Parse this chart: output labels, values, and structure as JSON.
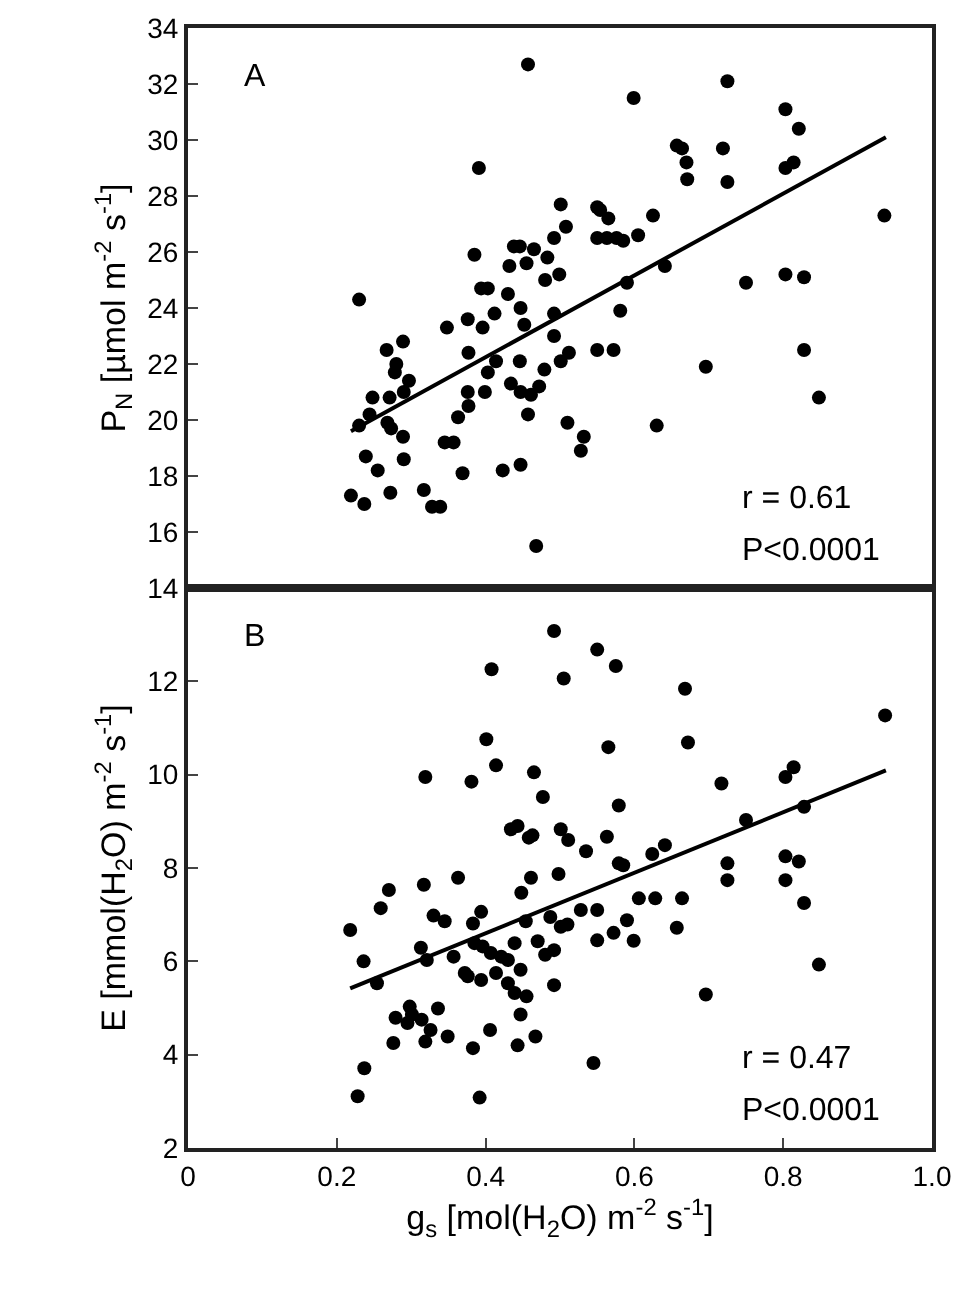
{
  "chart_data": [
    {
      "type": "scatter",
      "grid": false,
      "tick_labels": "y",
      "ylabel": "P$_{N}$ [µmol m$^{-2}$ s$^{-1}$]",
      "xlim": [
        0,
        1
      ],
      "ylim": [
        14,
        34
      ],
      "yticks": [
        14,
        16,
        18,
        20,
        22,
        24,
        26,
        28,
        30,
        32,
        34
      ],
      "annotations": [
        "A",
        "r = 0.61",
        "P<0.0001"
      ],
      "series": [
        {
          "color": "#000000",
          "marker": "circle",
          "x": [
            0.457,
            0.391,
            0.501,
            0.508,
            0.23,
            0.385,
            0.438,
            0.446,
            0.465,
            0.492,
            0.483,
            0.432,
            0.455,
            0.499,
            0.48,
            0.394,
            0.403,
            0.43,
            0.447,
            0.412,
            0.376,
            0.396,
            0.348,
            0.452,
            0.492,
            0.492,
            0.512,
            0.267,
            0.289,
            0.28,
            0.377,
            0.414,
            0.446,
            0.501,
            0.479,
            0.278,
            0.297,
            0.403,
            0.434,
            0.447,
            0.461,
            0.472,
            0.376,
            0.399,
            0.248,
            0.271,
            0.29,
            0.377,
            0.244,
            0.363,
            0.23,
            0.268,
            0.273,
            0.457,
            0.51,
            0.289,
            0.345,
            0.357,
            0.239,
            0.29,
            0.255,
            0.369,
            0.423,
            0.447,
            0.219,
            0.237,
            0.272,
            0.317,
            0.328,
            0.339,
            0.468,
            0.725,
            0.599,
            0.803,
            0.821,
            0.657,
            0.664,
            0.719,
            0.67,
            0.803,
            0.814,
            0.671,
            0.725,
            0.936,
            0.55,
            0.554,
            0.565,
            0.625,
            0.55,
            0.563,
            0.576,
            0.585,
            0.605,
            0.641,
            0.59,
            0.75,
            0.803,
            0.828,
            0.581,
            0.55,
            0.572,
            0.696,
            0.828,
            0.848,
            0.532,
            0.528,
            0.63
          ],
          "values": [
            32.7,
            29.0,
            27.7,
            26.9,
            24.3,
            25.9,
            26.2,
            26.2,
            26.1,
            26.5,
            25.8,
            25.5,
            25.6,
            25.2,
            25.0,
            24.7,
            24.7,
            24.5,
            24.0,
            23.8,
            23.6,
            23.3,
            23.3,
            23.4,
            23.8,
            23.0,
            22.4,
            22.5,
            22.8,
            22.0,
            22.4,
            22.1,
            22.1,
            22.1,
            21.8,
            21.7,
            21.4,
            21.7,
            21.3,
            21.0,
            20.9,
            21.2,
            21.0,
            21.0,
            20.8,
            20.8,
            21.0,
            20.5,
            20.2,
            20.1,
            19.8,
            19.9,
            19.7,
            20.2,
            19.9,
            19.4,
            19.2,
            19.2,
            18.7,
            18.6,
            18.2,
            18.1,
            18.2,
            18.4,
            17.3,
            17.0,
            17.4,
            17.5,
            16.9,
            16.9,
            15.5,
            32.1,
            31.5,
            31.1,
            30.4,
            29.8,
            29.7,
            29.7,
            29.2,
            29.0,
            29.2,
            28.6,
            28.5,
            27.3,
            27.6,
            27.5,
            27.2,
            27.3,
            26.5,
            26.5,
            26.5,
            26.4,
            26.6,
            25.5,
            24.9,
            24.9,
            25.2,
            25.1,
            23.9,
            22.5,
            22.5,
            21.9,
            22.5,
            20.8,
            19.4,
            18.9,
            19.8
          ]
        },
        {
          "type": "line",
          "marker": "none",
          "color": "#000000",
          "x": [
            0.219,
            0.938
          ],
          "values": [
            19.6,
            30.1
          ]
        }
      ]
    },
    {
      "type": "scatter",
      "grid": false,
      "xlabel": "g$_{s}$ [mol(H$_{2}$O) m$^{-2}$ s$^{-1}$]",
      "ylabel": "E [mmol(H$_{2}$O) m$^{-2}$ s$^{-1}$]",
      "xlim": [
        0,
        1
      ],
      "xticks": [
        0,
        0.2,
        0.4,
        0.6,
        0.8,
        {
          "value": 1,
          "label": "1.0"
        }
      ],
      "ylim": [
        2,
        14
      ],
      "yticks": [
        2,
        4,
        6,
        8,
        10,
        12
      ],
      "annotations": [
        "B",
        "r = 0.47",
        "P<0.0001"
      ],
      "series": [
        {
          "color": "#000000",
          "marker": "circle",
          "x": [
            0.492,
            0.408,
            0.505,
            0.401,
            0.414,
            0.319,
            0.381,
            0.465,
            0.477,
            0.434,
            0.443,
            0.458,
            0.463,
            0.501,
            0.511,
            0.27,
            0.317,
            0.363,
            0.461,
            0.448,
            0.498,
            0.218,
            0.259,
            0.33,
            0.345,
            0.383,
            0.394,
            0.454,
            0.487,
            0.501,
            0.51,
            0.236,
            0.313,
            0.321,
            0.357,
            0.385,
            0.396,
            0.407,
            0.421,
            0.43,
            0.439,
            0.47,
            0.48,
            0.492,
            0.372,
            0.376,
            0.394,
            0.414,
            0.43,
            0.447,
            0.254,
            0.439,
            0.455,
            0.492,
            0.447,
            0.279,
            0.298,
            0.301,
            0.314,
            0.326,
            0.295,
            0.336,
            0.276,
            0.319,
            0.349,
            0.406,
            0.383,
            0.443,
            0.467,
            0.237,
            0.228,
            0.392,
            0.55,
            0.575,
            0.668,
            0.937,
            0.565,
            0.672,
            0.717,
            0.803,
            0.814,
            0.579,
            0.75,
            0.828,
            0.563,
            0.535,
            0.579,
            0.585,
            0.624,
            0.641,
            0.725,
            0.725,
            0.803,
            0.821,
            0.803,
            0.606,
            0.628,
            0.664,
            0.828,
            0.528,
            0.55,
            0.59,
            0.572,
            0.55,
            0.599,
            0.657,
            0.696,
            0.848,
            0.545
          ],
          "values": [
            13.08,
            12.26,
            12.06,
            10.76,
            10.2,
            9.95,
            9.85,
            10.05,
            9.52,
            8.83,
            8.9,
            8.65,
            8.7,
            8.83,
            8.6,
            7.53,
            7.64,
            7.79,
            7.79,
            7.47,
            7.87,
            6.67,
            7.14,
            6.98,
            6.86,
            6.81,
            7.06,
            6.86,
            6.95,
            6.74,
            6.79,
            6.0,
            6.29,
            6.03,
            6.1,
            6.39,
            6.32,
            6.18,
            6.1,
            6.03,
            6.39,
            6.43,
            6.14,
            6.24,
            5.75,
            5.68,
            5.6,
            5.75,
            5.53,
            5.82,
            5.53,
            5.32,
            5.25,
            5.49,
            4.86,
            4.79,
            5.03,
            4.86,
            4.75,
            4.53,
            4.68,
            4.99,
            4.25,
            4.28,
            4.39,
            4.53,
            4.14,
            4.2,
            4.39,
            3.71,
            3.11,
            3.08,
            12.68,
            12.33,
            11.84,
            11.27,
            10.59,
            10.69,
            9.81,
            9.95,
            10.16,
            9.34,
            9.03,
            9.31,
            8.67,
            8.36,
            8.1,
            8.06,
            8.3,
            8.49,
            8.1,
            7.74,
            8.25,
            8.14,
            7.74,
            7.35,
            7.35,
            7.35,
            7.25,
            7.1,
            7.1,
            6.88,
            6.61,
            6.45,
            6.44,
            6.72,
            5.29,
            5.93,
            3.82
          ]
        },
        {
          "type": "line",
          "marker": "none",
          "color": "#000000",
          "x": [
            0.218,
            0.938
          ],
          "values": [
            5.42,
            10.09
          ]
        }
      ]
    }
  ]
}
